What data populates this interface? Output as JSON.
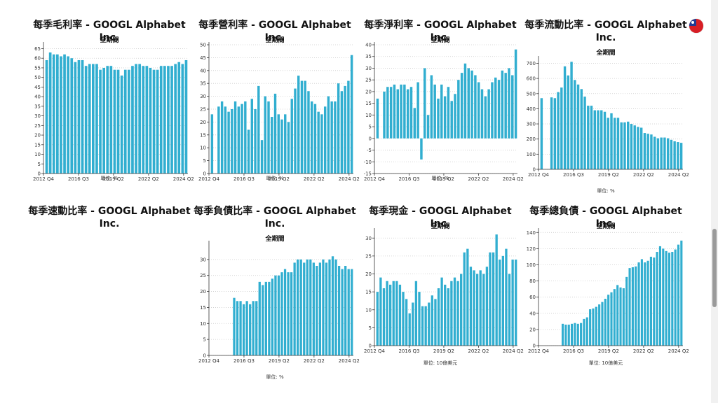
{
  "page": {
    "flag_icon": "taiwan-flag-icon",
    "colors": {
      "bar": "#31aed0",
      "grid": "#cccccc",
      "axis": "#333333"
    }
  },
  "chart_data": [
    {
      "type": "bar",
      "title": "每季毛利率 - GOOGL Alphabet Inc.",
      "subtitle": "全期間",
      "unit_label": "單位: %",
      "x_ticks": [
        "2012 Q4",
        "2016 Q3",
        "2019 Q2",
        "2022 Q2",
        "2024 Q2"
      ],
      "ylim": [
        0,
        67
      ],
      "y_ticks": [
        0,
        5,
        10,
        15,
        20,
        25,
        30,
        35,
        40,
        45,
        50,
        55,
        60,
        65
      ],
      "values": [
        59,
        63,
        62,
        62,
        61,
        62,
        61,
        60,
        58,
        59,
        59,
        56,
        57,
        57,
        57,
        54,
        55,
        56,
        56,
        54,
        54,
        51,
        54,
        54,
        56,
        57,
        57,
        56,
        56,
        55,
        54,
        54,
        56,
        56,
        56,
        56,
        57,
        58,
        57,
        59
      ]
    },
    {
      "type": "bar",
      "title": "每季營利率 - GOOGL Alphabet Inc.",
      "subtitle": "全期間",
      "unit_label": "單位: %",
      "x_ticks": [
        "2012 Q4",
        "2016 Q3",
        "2019 Q2",
        "2022 Q2",
        "2024 Q2"
      ],
      "ylim": [
        0,
        50
      ],
      "y_ticks": [
        0,
        5,
        10,
        15,
        20,
        25,
        30,
        35,
        40,
        45,
        50
      ],
      "values": [
        23,
        0,
        26,
        28,
        26,
        24,
        25,
        28,
        26,
        27,
        28,
        17,
        29,
        25,
        34,
        13,
        30,
        28,
        22,
        31,
        23,
        21,
        23,
        20,
        29,
        33,
        38,
        36,
        36,
        32,
        28,
        27,
        24,
        23,
        26,
        30,
        28,
        28,
        35,
        32,
        34,
        36,
        46
      ]
    },
    {
      "type": "bar",
      "title": "每季淨利率 - GOOGL Alphabet Inc.",
      "subtitle": "全期間",
      "unit_label": "單位: %",
      "x_ticks": [
        "2012 Q4",
        "2016 Q3",
        "2019 Q2",
        "2022 Q2",
        "2024 Q2"
      ],
      "ylim": [
        -15,
        40
      ],
      "y_ticks": [
        -15,
        -10,
        -5,
        0,
        5,
        10,
        15,
        20,
        25,
        30,
        35,
        40
      ],
      "values": [
        17,
        0,
        20,
        22,
        22,
        23,
        21,
        23,
        23,
        21,
        22,
        13,
        24,
        -9,
        30,
        10,
        27,
        23,
        17,
        23,
        18,
        22,
        16,
        19,
        25,
        28,
        32,
        30,
        29,
        27,
        24,
        21,
        18,
        21,
        24,
        26,
        25,
        29,
        28,
        30,
        27,
        38
      ]
    },
    {
      "type": "bar",
      "title": "每季流動比率 - GOOGL Alphabet Inc.",
      "subtitle": "全期間",
      "unit_label": "單位: %",
      "x_ticks": [
        "2012 Q4",
        "2016 Q3",
        "2019 Q2",
        "2022 Q2",
        "2024 Q2"
      ],
      "ylim": [
        0,
        730
      ],
      "y_ticks": [
        0,
        100,
        200,
        300,
        400,
        500,
        600,
        700
      ],
      "values": [
        470,
        0,
        0,
        475,
        470,
        510,
        540,
        680,
        620,
        710,
        590,
        560,
        530,
        480,
        420,
        420,
        390,
        390,
        390,
        380,
        340,
        370,
        340,
        340,
        310,
        310,
        315,
        300,
        290,
        280,
        275,
        240,
        235,
        230,
        215,
        205,
        210,
        210,
        205,
        195,
        185,
        180,
        175
      ]
    },
    {
      "type": "bar",
      "title": "每季速動比率 - GOOGL Alphabet Inc.",
      "subtitle": "",
      "unit_label": "",
      "x_ticks": [],
      "values": []
    },
    {
      "type": "bar",
      "title": "每季負債比率 - GOOGL Alphabet Inc.",
      "subtitle": "全期間",
      "unit_label": "單位: %",
      "x_ticks": [
        "2012 Q4",
        "2016 Q3",
        "2019 Q2",
        "2022 Q2",
        "2024 Q2"
      ],
      "ylim": [
        0,
        35
      ],
      "y_ticks": [
        0,
        5,
        10,
        15,
        20,
        25,
        30
      ],
      "values": [
        0,
        0,
        0,
        0,
        0,
        0,
        0,
        18,
        17,
        17,
        16,
        17,
        16,
        17,
        17,
        23,
        22,
        23,
        23,
        24,
        25,
        25,
        26,
        27,
        26,
        26,
        29,
        30,
        30,
        29,
        30,
        30,
        29,
        28,
        29,
        30,
        29,
        30,
        31,
        30,
        28,
        27,
        28,
        27,
        27
      ]
    },
    {
      "type": "bar",
      "title": "每季現金 - GOOGL Alphabet Inc.",
      "subtitle": "全期間",
      "unit_label": "單位: 10億美元",
      "x_ticks": [
        "2012 Q4",
        "2016 Q3",
        "2019 Q2",
        "2022 Q2",
        "2024 Q2"
      ],
      "ylim": [
        0,
        32
      ],
      "y_ticks": [
        0,
        5,
        10,
        15,
        20,
        25,
        30
      ],
      "values": [
        15,
        19,
        16,
        18,
        17,
        18,
        18,
        17,
        15,
        13,
        9,
        12,
        18,
        15,
        11,
        11,
        12,
        14,
        13,
        16,
        19,
        17,
        16,
        18,
        19,
        18,
        20,
        26,
        27,
        22,
        21,
        20,
        21,
        20,
        22,
        26,
        26,
        31,
        24,
        25,
        27,
        20,
        24,
        24
      ]
    },
    {
      "type": "bar",
      "title": "每季總負債 - GOOGL Alphabet Inc.",
      "subtitle": "全期間",
      "unit_label": "單位: 10億美元",
      "x_ticks": [
        "2012 Q4",
        "2016 Q3",
        "2019 Q2",
        "2022 Q2",
        "2024 Q2"
      ],
      "ylim": [
        0,
        142
      ],
      "y_ticks": [
        0,
        20,
        40,
        60,
        80,
        100,
        120,
        140
      ],
      "values": [
        0,
        0,
        0,
        0,
        0,
        0,
        0,
        27,
        26,
        26,
        27,
        28,
        27,
        28,
        33,
        35,
        45,
        46,
        48,
        51,
        54,
        58,
        63,
        66,
        70,
        75,
        72,
        71,
        85,
        96,
        97,
        98,
        103,
        107,
        103,
        105,
        110,
        109,
        116,
        123,
        120,
        117,
        115,
        116,
        119,
        125,
        130
      ]
    }
  ]
}
